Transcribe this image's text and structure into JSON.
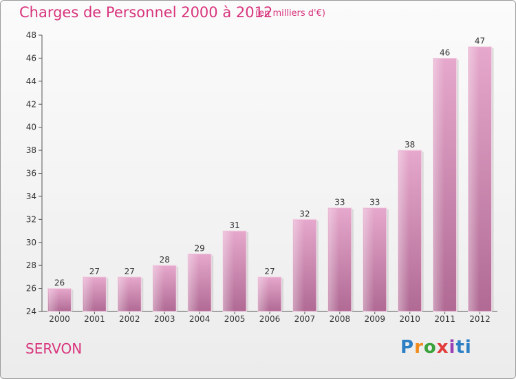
{
  "chart_data": {
    "type": "bar",
    "title": "Charges de Personnel 2000 à 2012",
    "subtitle": "(en milliers d'€)",
    "categories": [
      "2000",
      "2001",
      "2002",
      "2003",
      "2004",
      "2005",
      "2006",
      "2007",
      "2008",
      "2009",
      "2010",
      "2011",
      "2012"
    ],
    "values": [
      26,
      27,
      27,
      28,
      29,
      31,
      27,
      32,
      33,
      33,
      38,
      46,
      47
    ],
    "data_labels": [
      "26",
      "27",
      "27",
      "28",
      "29",
      "31",
      "27",
      "32",
      "33",
      "33",
      "38",
      "46",
      "47"
    ],
    "ylim": [
      24,
      48
    ],
    "yticks": [
      24,
      26,
      28,
      30,
      32,
      34,
      36,
      38,
      40,
      42,
      44,
      46,
      48
    ],
    "xlabel": "",
    "ylabel": "",
    "grid": false,
    "bar_color": "#d98bb5"
  },
  "footer": {
    "place": "SERVON",
    "logo": [
      "P",
      "r",
      "o",
      "x",
      "i",
      "ti"
    ]
  }
}
